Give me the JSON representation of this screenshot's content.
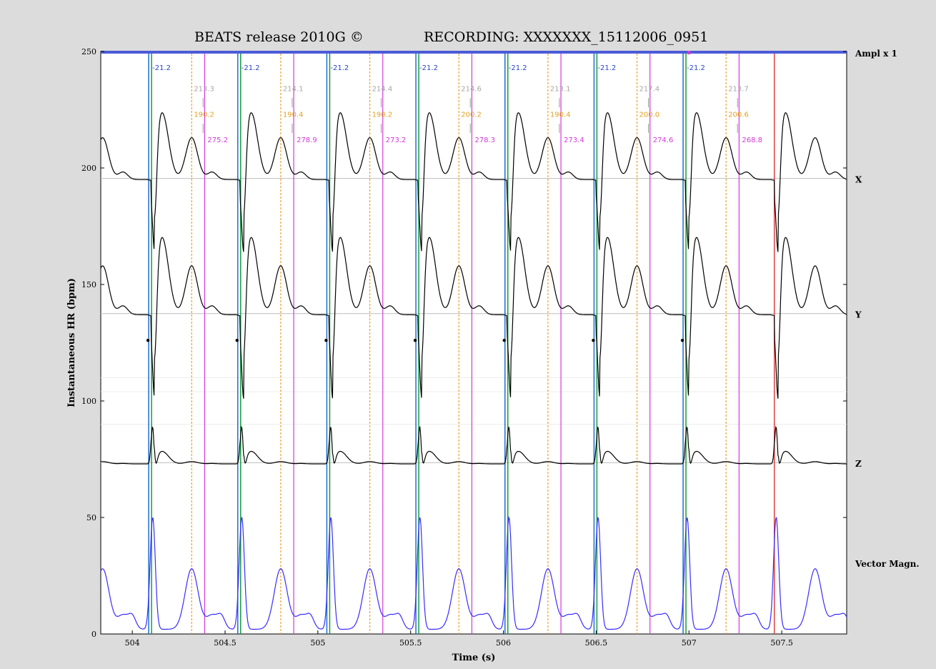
{
  "chart_data": {
    "type": "line",
    "title_left": "BEATS release 2010G ©",
    "title_right": "RECORDING: XXXXXXX_15112006_0951",
    "xlabel": "Time (s)",
    "ylabel": "Instantaneous HR (bpm)",
    "xlim": [
      503.83,
      507.85
    ],
    "ylim": [
      0,
      250
    ],
    "x_ticks": [
      504,
      504.5,
      505,
      505.5,
      506,
      506.5,
      507,
      507.5
    ],
    "x_tick_labels": [
      "504",
      "504.5",
      "505",
      "505.5",
      "506",
      "506.5",
      "507",
      "507.5"
    ],
    "y_ticks": [
      0,
      50,
      100,
      150,
      200,
      250
    ],
    "y_tick_labels": [
      "0",
      "50",
      "100",
      "150",
      "200",
      "250"
    ],
    "amplitude_label": "Ampl x 1",
    "trace_labels": [
      {
        "name": "X",
        "y": 195
      },
      {
        "name": "Y",
        "y": 137
      },
      {
        "name": "Z",
        "y": 73
      },
      {
        "name": "Vector Magn.",
        "y": 30
      }
    ],
    "baselines": [
      195.5,
      137.5,
      73.5
    ],
    "beats": [
      {
        "r": 504.1,
        "q_label": "-21.2",
        "top_label": "213.3",
        "t_peak": 504.32,
        "t_label": "190.2",
        "t_end": 504.39,
        "t_end_label": "275.2"
      },
      {
        "r": 504.58,
        "q_label": "-21.2",
        "top_label": "214.1",
        "t_peak": 504.8,
        "t_label": "190.4",
        "t_end": 504.87,
        "t_end_label": "278.9"
      },
      {
        "r": 505.06,
        "q_label": "-21.2",
        "top_label": "214.4",
        "t_peak": 505.28,
        "t_label": "190.2",
        "t_end": 505.35,
        "t_end_label": "273.2"
      },
      {
        "r": 505.54,
        "q_label": "-21.2",
        "top_label": "214.6",
        "t_peak": 505.76,
        "t_label": "200.2",
        "t_end": 505.83,
        "t_end_label": "278.3"
      },
      {
        "r": 506.02,
        "q_label": "-21.2",
        "top_label": "213.1",
        "t_peak": 506.24,
        "t_label": "190.4",
        "t_end": 506.31,
        "t_end_label": "273.4"
      },
      {
        "r": 506.5,
        "q_label": "-21.2",
        "top_label": "217.4",
        "t_peak": 506.72,
        "t_label": "200.0",
        "t_end": 506.79,
        "t_end_label": "274.6"
      },
      {
        "r": 506.98,
        "q_label": "-21.2",
        "top_label": "213.7",
        "t_peak": 507.2,
        "t_label": "200.6",
        "t_end": 507.27,
        "t_end_label": "268.8"
      }
    ],
    "next_beat_r": 507.46,
    "series": [
      {
        "name": "X",
        "baseline": 195,
        "q_amp": -32,
        "r_amp": 2,
        "t_amp": 18,
        "color": "#000000"
      },
      {
        "name": "Y",
        "baseline": 137,
        "q_amp": -37,
        "r_amp": 2,
        "t_amp": 21,
        "color": "#000000"
      },
      {
        "name": "Z",
        "baseline": 73,
        "q_amp": -6,
        "r_amp": 20,
        "t_amp": 1,
        "color": "#000000"
      },
      {
        "name": "Vector Magn.",
        "baseline": 2,
        "q_amp": 0,
        "r_amp": 48,
        "t_amp": 26,
        "color": "#3a2cff"
      }
    ],
    "colors": {
      "frame_bg": "#dcdcdc",
      "plot_bg": "#ffffff",
      "top_bar": "#4b5bd8",
      "r_line": "#1a9a3c",
      "q_line": "#1a6fd0",
      "t_line": "#f0a030",
      "t_end_line": "#d23ad8",
      "red_line": "#e04040",
      "q_label": "#2a45c8",
      "top_label": "#a6a6a6",
      "t_label": "#e0a020",
      "t_end_label": "#d23ad8"
    }
  }
}
